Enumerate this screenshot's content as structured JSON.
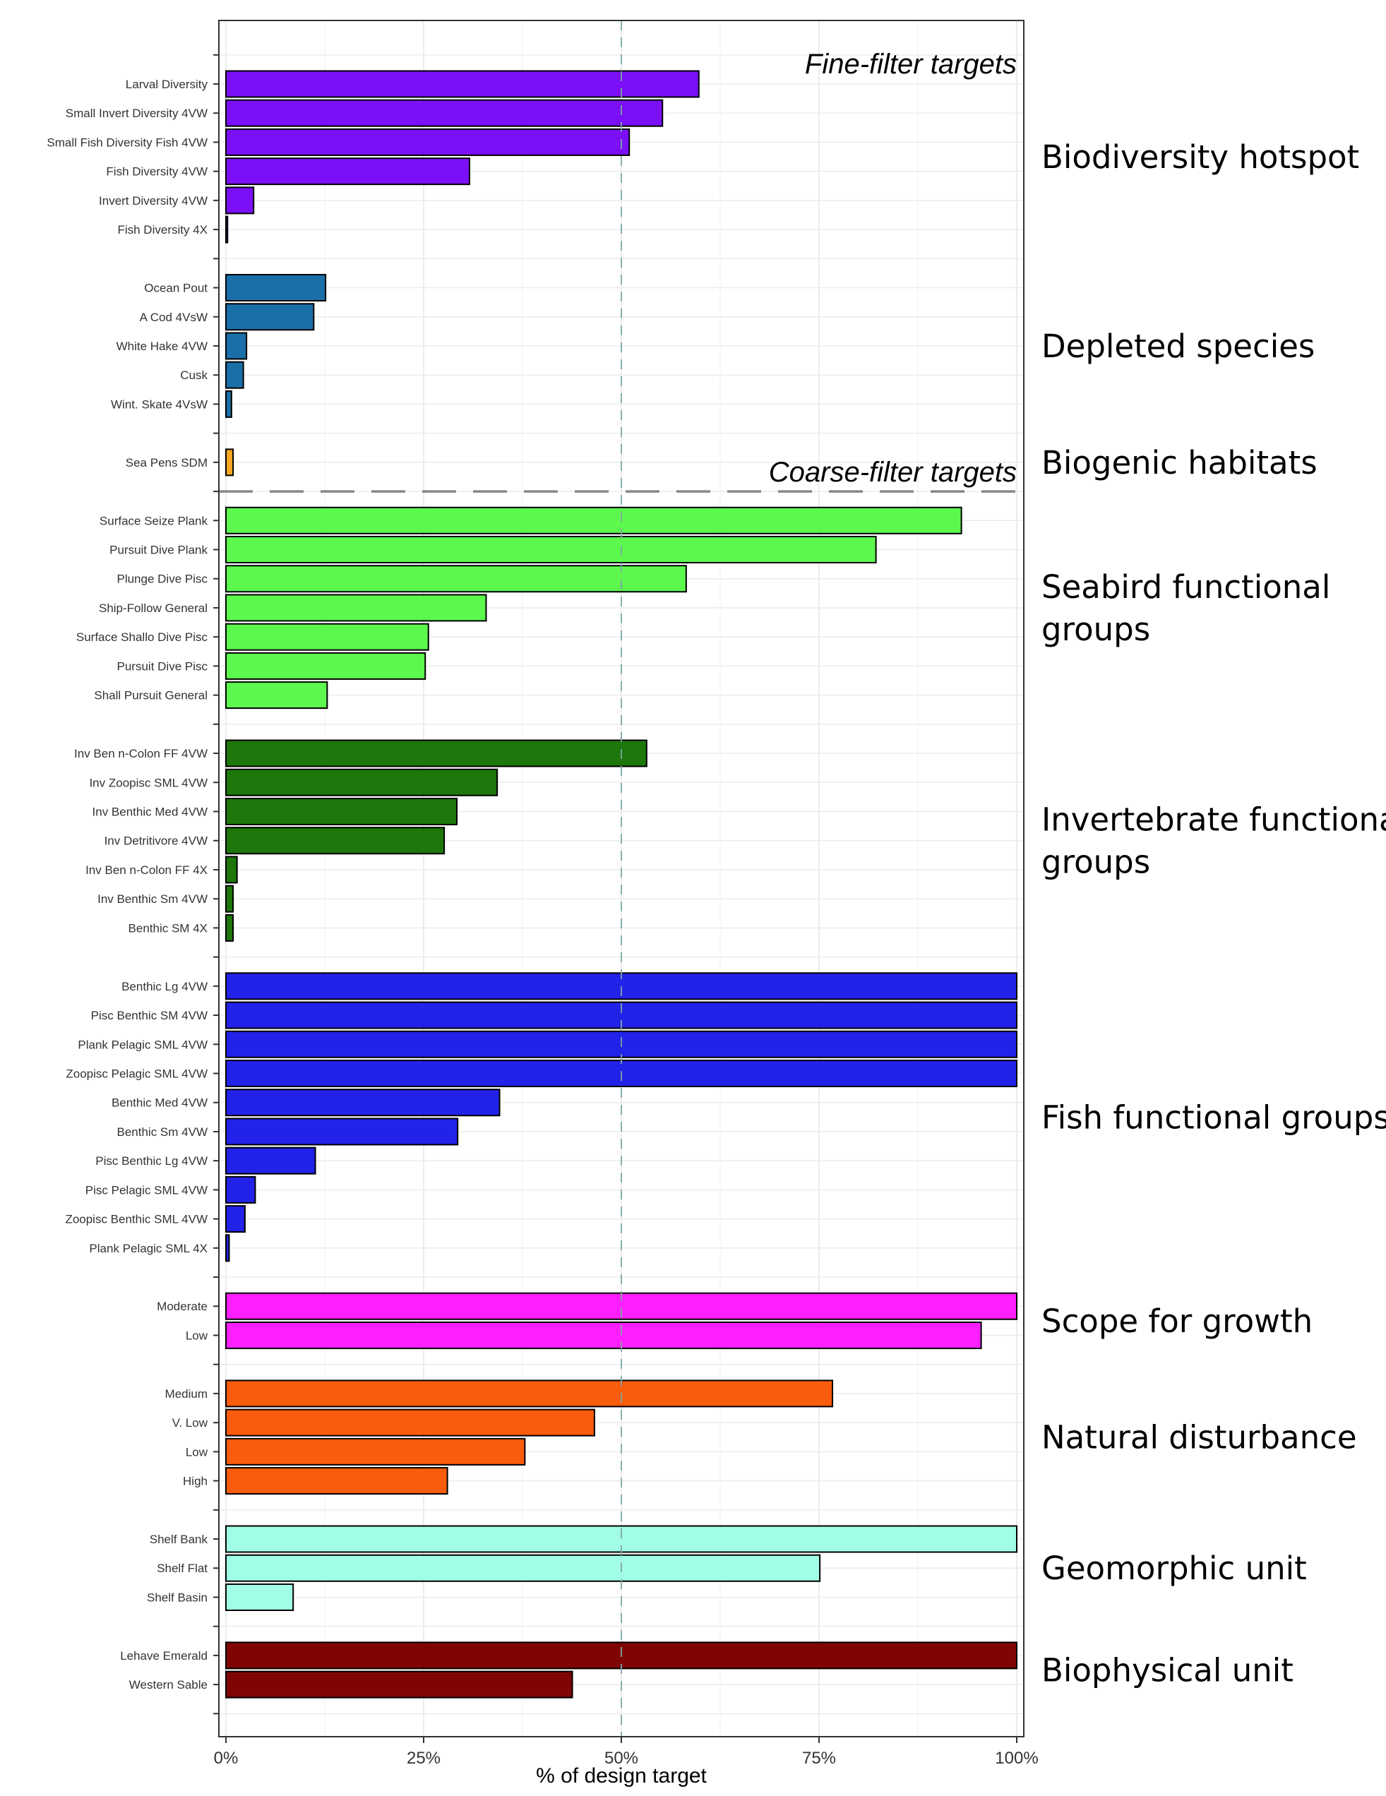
{
  "chart_data": {
    "type": "bar",
    "orientation": "horizontal",
    "xlabel": "% of design target",
    "xlim": [
      0,
      100
    ],
    "xticks": [
      0,
      25,
      50,
      75,
      100
    ],
    "xtick_labels": [
      "0%",
      "25%",
      "50%",
      "75%",
      "100%"
    ],
    "reference_line": 50,
    "grid": true,
    "section_labels": [
      {
        "text": "Fine-filter targets"
      },
      {
        "text": "Coarse-filter targets"
      }
    ],
    "groups": [
      {
        "name": "Biodiversity hotspot",
        "color": "#7B0FF7",
        "bars": [
          {
            "label": "Larval Diversity",
            "value": 59.8
          },
          {
            "label": "Small Invert Diversity 4VW",
            "value": 55.2
          },
          {
            "label": "Small Fish Diversity Fish 4VW",
            "value": 51
          },
          {
            "label": "Fish Diversity 4VW",
            "value": 30.8
          },
          {
            "label": "Invert Diversity 4VW",
            "value": 3.5
          },
          {
            "label": "Fish Diversity 4X",
            "value": 0.2
          }
        ]
      },
      {
        "name": "Depleted species",
        "color": "#1A6FA8",
        "bars": [
          {
            "label": "Ocean Pout",
            "value": 12.6
          },
          {
            "label": "A Cod 4VsW",
            "value": 11.1
          },
          {
            "label": "White Hake 4VW",
            "value": 2.6
          },
          {
            "label": "Cusk",
            "value": 2.2
          },
          {
            "label": "Wint. Skate 4VsW",
            "value": 0.7
          }
        ]
      },
      {
        "name": "Biogenic habitats",
        "color": "#F5A623",
        "bars": [
          {
            "label": "Sea Pens SDM",
            "value": 0.9
          }
        ]
      },
      {
        "name": "Seabird functional groups",
        "color": "#5CF84E",
        "bars": [
          {
            "label": "Surface Seize Plank",
            "value": 93
          },
          {
            "label": "Pursuit Dive Plank",
            "value": 82.2
          },
          {
            "label": "Plunge Dive Pisc",
            "value": 58.2
          },
          {
            "label": "Ship-Follow General",
            "value": 32.9
          },
          {
            "label": "Surface Shallo Dive Pisc",
            "value": 25.6
          },
          {
            "label": "Pursuit Dive Pisc",
            "value": 25.2
          },
          {
            "label": "Shall Pursuit General",
            "value": 12.8
          }
        ]
      },
      {
        "name": "Invertebrate functional groups",
        "color": "#1D770B",
        "bars": [
          {
            "label": "Inv Ben n-Colon FF 4VW",
            "value": 53.2
          },
          {
            "label": "Inv Zoopisc SML 4VW",
            "value": 34.3
          },
          {
            "label": "Inv Benthic Med 4VW",
            "value": 29.2
          },
          {
            "label": "Inv Detritivore 4VW",
            "value": 27.6
          },
          {
            "label": "Inv Ben n-Colon FF 4X",
            "value": 1.4
          },
          {
            "label": "Inv Benthic Sm 4VW",
            "value": 0.9
          },
          {
            "label": "Benthic SM 4X",
            "value": 0.9
          }
        ]
      },
      {
        "name": "Fish functional groups",
        "color": "#2222E8",
        "bars": [
          {
            "label": "Benthic Lg 4VW",
            "value": 100
          },
          {
            "label": "Pisc Benthic SM 4VW",
            "value": 100
          },
          {
            "label": "Plank Pelagic SML 4VW",
            "value": 100
          },
          {
            "label": "Zoopisc Pelagic SML 4VW",
            "value": 100
          },
          {
            "label": "Benthic Med 4VW",
            "value": 34.6
          },
          {
            "label": "Benthic Sm 4VW",
            "value": 29.3
          },
          {
            "label": "Pisc Benthic Lg 4VW",
            "value": 11.3
          },
          {
            "label": "Pisc Pelagic SML 4VW",
            "value": 3.7
          },
          {
            "label": "Zoopisc Benthic SML 4VW",
            "value": 2.4
          },
          {
            "label": "Plank Pelagic SML 4X",
            "value": 0.4
          }
        ]
      },
      {
        "name": "Scope for growth",
        "color": "#FF1FFF",
        "bars": [
          {
            "label": "Moderate",
            "value": 100
          },
          {
            "label": "Low",
            "value": 95.5
          }
        ]
      },
      {
        "name": "Natural disturbance",
        "color": "#F95C0C",
        "bars": [
          {
            "label": "Medium",
            "value": 76.7
          },
          {
            "label": "V. Low",
            "value": 46.6
          },
          {
            "label": "Low",
            "value": 37.8
          },
          {
            "label": "High",
            "value": 28
          }
        ]
      },
      {
        "name": "Geomorphic unit",
        "color": "#A1FDE5",
        "bars": [
          {
            "label": "Shelf Bank",
            "value": 100
          },
          {
            "label": "Shelf Flat",
            "value": 75.1
          },
          {
            "label": "Shelf Basin",
            "value": 8.5
          }
        ]
      },
      {
        "name": "Biophysical unit",
        "color": "#7F0505",
        "bars": [
          {
            "label": "Lehave Emerald",
            "value": 100
          },
          {
            "label": "Western Sable",
            "value": 43.8
          }
        ]
      }
    ]
  }
}
